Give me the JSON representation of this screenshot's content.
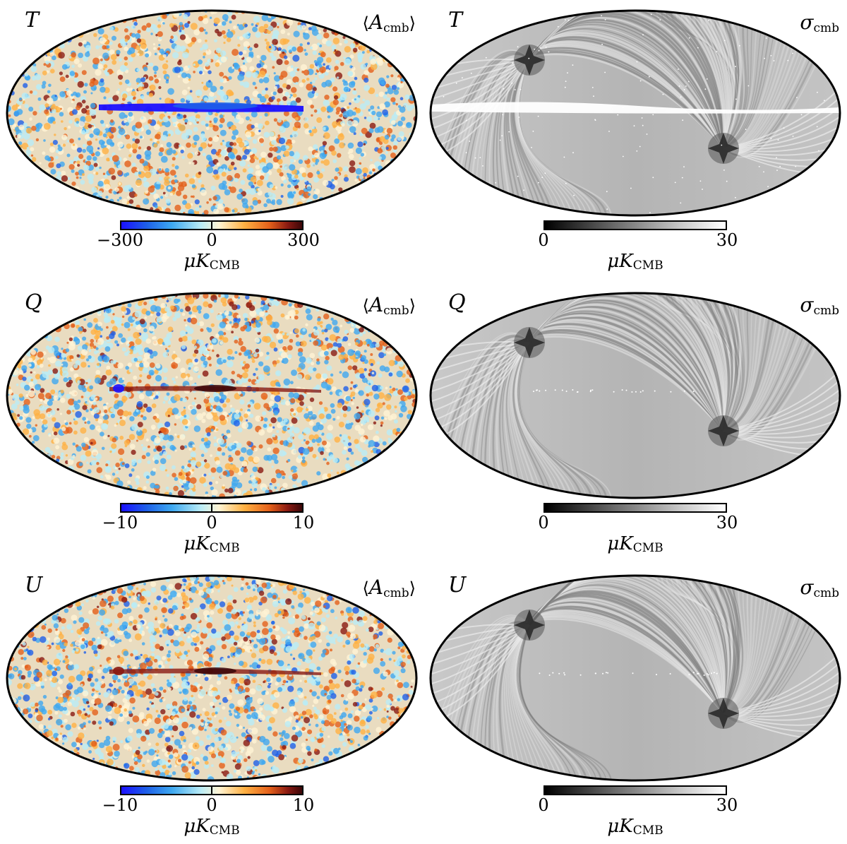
{
  "panels": [
    {
      "stokes": "T",
      "title_symbol": "A",
      "title_sub": "cmb",
      "title_kind": "mean",
      "scale": "diverging",
      "tick_min": "−300",
      "tick_mid": "0",
      "tick_max": "300",
      "unit_main": "μK",
      "unit_sub": "CMB"
    },
    {
      "stokes": "T",
      "title_symbol": "σ",
      "title_sub": "cmb",
      "title_kind": "std",
      "scale": "gray",
      "tick_min": "0",
      "tick_max": "30",
      "unit_main": "μK",
      "unit_sub": "CMB"
    },
    {
      "stokes": "Q",
      "title_symbol": "A",
      "title_sub": "cmb",
      "title_kind": "mean",
      "scale": "diverging",
      "tick_min": "−10",
      "tick_mid": "0",
      "tick_max": "10",
      "unit_main": "μK",
      "unit_sub": "CMB"
    },
    {
      "stokes": "Q",
      "title_symbol": "σ",
      "title_sub": "cmb",
      "title_kind": "std",
      "scale": "gray",
      "tick_min": "0",
      "tick_max": "30",
      "unit_main": "μK",
      "unit_sub": "CMB"
    },
    {
      "stokes": "U",
      "title_symbol": "A",
      "title_sub": "cmb",
      "title_kind": "mean",
      "scale": "diverging",
      "tick_min": "−10",
      "tick_mid": "0",
      "tick_max": "10",
      "unit_main": "μK",
      "unit_sub": "CMB"
    },
    {
      "stokes": "U",
      "title_symbol": "σ",
      "title_sub": "cmb",
      "title_kind": "std",
      "scale": "gray",
      "tick_min": "0",
      "tick_max": "30",
      "unit_main": "μK",
      "unit_sub": "CMB"
    }
  ],
  "colors": {
    "diverging": [
      "#1b10ff",
      "#1e60e8",
      "#3ea8f0",
      "#b9ecf6",
      "#fff4d4",
      "#ffb143",
      "#e4601a",
      "#8a1a12",
      "#3a0608"
    ],
    "gray": [
      "#000000",
      "#6e6e6e",
      "#c8c8c8",
      "#ffffff"
    ]
  }
}
